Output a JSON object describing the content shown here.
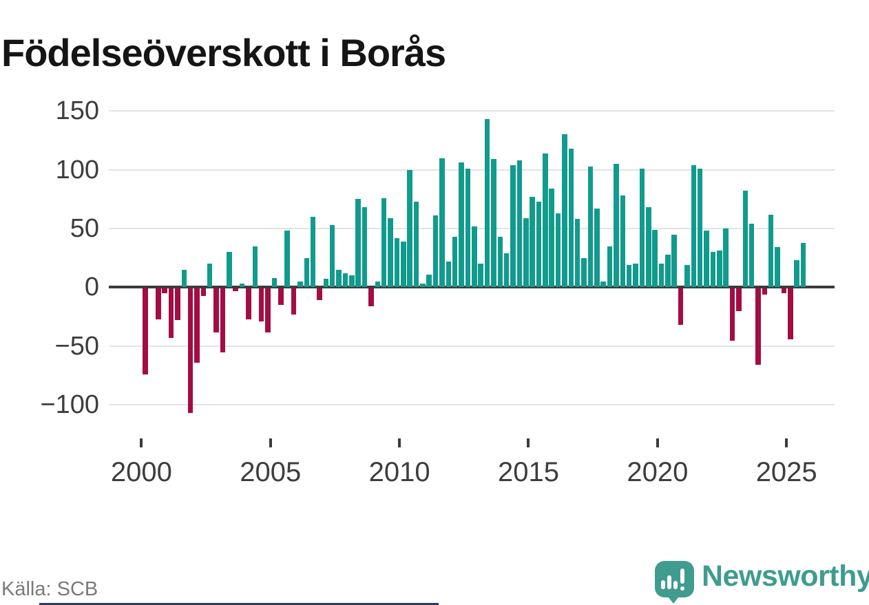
{
  "title": "Födelseöverskott i Borås",
  "source": "Källa: SCB",
  "logo": {
    "text": "Newsworthy"
  },
  "colors": {
    "positive": "#109B8D",
    "negative": "#A40C44",
    "axis": "#3B3B3B",
    "grid": "#E3E3E3",
    "tick_label": "#3D3D3D",
    "source_text": "#7A7A7A",
    "logo_teal": "#3F9C8F",
    "title_text": "#151515"
  },
  "chart_data": {
    "type": "bar",
    "title": "Födelseöverskott i Borås",
    "xlabel": "",
    "ylabel": "",
    "grid": true,
    "legend": false,
    "ylim": [
      -120,
      160
    ],
    "y_ticks": [
      150,
      100,
      50,
      0,
      -50,
      -100
    ],
    "y_tick_labels": [
      "150",
      "100",
      "50",
      "0",
      "−50",
      "−100"
    ],
    "x_tick_labels": [
      "2000",
      "2005",
      "2010",
      "2015",
      "2020",
      "2025"
    ],
    "x": [
      "2000Q1",
      "2000Q2",
      "2000Q3",
      "2000Q4",
      "2001Q1",
      "2001Q2",
      "2001Q3",
      "2001Q4",
      "2002Q1",
      "2002Q2",
      "2002Q3",
      "2002Q4",
      "2003Q1",
      "2003Q2",
      "2003Q3",
      "2003Q4",
      "2004Q1",
      "2004Q2",
      "2004Q3",
      "2004Q4",
      "2005Q1",
      "2005Q2",
      "2005Q3",
      "2005Q4",
      "2006Q1",
      "2006Q2",
      "2006Q3",
      "2006Q4",
      "2007Q1",
      "2007Q2",
      "2007Q3",
      "2007Q4",
      "2008Q1",
      "2008Q2",
      "2008Q3",
      "2008Q4",
      "2009Q1",
      "2009Q2",
      "2009Q3",
      "2009Q4",
      "2010Q1",
      "2010Q2",
      "2010Q3",
      "2010Q4",
      "2011Q1",
      "2011Q2",
      "2011Q3",
      "2011Q4",
      "2012Q1",
      "2012Q2",
      "2012Q3",
      "2012Q4",
      "2013Q1",
      "2013Q2",
      "2013Q3",
      "2013Q4",
      "2014Q1",
      "2014Q2",
      "2014Q3",
      "2014Q4",
      "2015Q1",
      "2015Q2",
      "2015Q3",
      "2015Q4",
      "2016Q1",
      "2016Q2",
      "2016Q3",
      "2016Q4",
      "2017Q1",
      "2017Q2",
      "2017Q3",
      "2017Q4",
      "2018Q1",
      "2018Q2",
      "2018Q3",
      "2018Q4",
      "2019Q1",
      "2019Q2",
      "2019Q3",
      "2019Q4",
      "2020Q1",
      "2020Q2",
      "2020Q3",
      "2020Q4",
      "2021Q1",
      "2021Q2",
      "2021Q3",
      "2021Q4",
      "2022Q1",
      "2022Q2",
      "2022Q3",
      "2022Q4",
      "2023Q1",
      "2023Q2",
      "2023Q3",
      "2023Q4",
      "2024Q1",
      "2024Q2",
      "2024Q3",
      "2024Q4",
      "2025Q1",
      "2025Q2",
      "2025Q3"
    ],
    "values": [
      -73,
      0,
      -26,
      -4,
      -42,
      -27,
      15,
      -106,
      -63,
      -6,
      20,
      -37,
      -54,
      30,
      -2,
      3,
      -26,
      35,
      -28,
      -37,
      8,
      -14,
      48,
      -22,
      5,
      25,
      60,
      -10,
      7,
      53,
      15,
      12,
      10,
      75,
      68,
      -15,
      5,
      76,
      59,
      42,
      39,
      100,
      73,
      3,
      11,
      61,
      110,
      22,
      43,
      106,
      101,
      52,
      20,
      143,
      109,
      43,
      29,
      104,
      108,
      59,
      77,
      73,
      114,
      84,
      63,
      130,
      118,
      58,
      25,
      103,
      67,
      5,
      35,
      105,
      78,
      19,
      20,
      101,
      68,
      49,
      20,
      28,
      45,
      -31,
      19,
      104,
      101,
      48,
      30,
      31,
      50,
      -44,
      -19,
      82,
      54,
      -65,
      -5,
      62,
      34,
      -4,
      -43,
      23,
      38
    ]
  }
}
